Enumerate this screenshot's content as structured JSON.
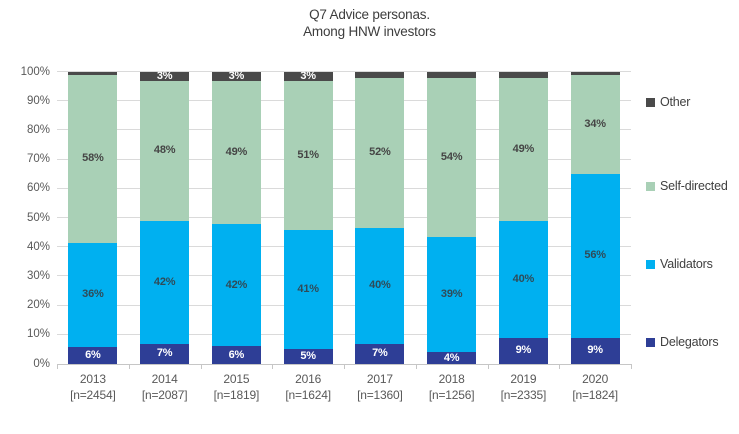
{
  "title": {
    "line1": "Q7 Advice personas.",
    "line2": "Among HNW investors"
  },
  "chart_data": {
    "type": "bar",
    "variant": "stacked-100-percent",
    "title": "Q7 Advice personas. Among HNW investors",
    "categories": [
      "2013",
      "2014",
      "2015",
      "2016",
      "2017",
      "2018",
      "2019",
      "2020"
    ],
    "category_sublabels": [
      "[n=2454]",
      "[n=2087]",
      "[n=1819]",
      "[n=1624]",
      "[n=1360]",
      "[n=1256]",
      "[n=2335]",
      "[n=1824]"
    ],
    "y_ticks": [
      "0%",
      "10%",
      "20%",
      "30%",
      "40%",
      "50%",
      "60%",
      "70%",
      "80%",
      "90%",
      "100%"
    ],
    "ylim": [
      0,
      100
    ],
    "grid": true,
    "legend_position": "right",
    "series": [
      {
        "name": "Delegators",
        "color": "#2e3e96",
        "label_color": "#ffffff",
        "values": [
          6,
          7,
          6,
          5,
          7,
          4,
          9,
          9
        ],
        "labels": [
          "6%",
          "7%",
          "6%",
          "5%",
          "7%",
          "4%",
          "9%",
          "9%"
        ]
      },
      {
        "name": "Validators",
        "color": "#00b0f0",
        "label_color": "#2f4b58",
        "values": [
          36,
          42,
          42,
          41,
          40,
          39,
          40,
          56
        ],
        "labels": [
          "36%",
          "42%",
          "42%",
          "41%",
          "40%",
          "39%",
          "40%",
          "56%"
        ]
      },
      {
        "name": "Self-directed",
        "color": "#a9d0b6",
        "label_color": "#454545",
        "values": [
          58,
          48,
          49,
          51,
          52,
          54,
          49,
          34
        ],
        "labels": [
          "58%",
          "48%",
          "49%",
          "51%",
          "52%",
          "54%",
          "49%",
          "34%"
        ]
      },
      {
        "name": "Other",
        "color": "#4a4a4a",
        "label_color": "#ffffff",
        "values": [
          1,
          3,
          3,
          3,
          2,
          2,
          2,
          1
        ],
        "labels": [
          "",
          "3%",
          "3%",
          "3%",
          "",
          "",
          "",
          ""
        ]
      }
    ],
    "legend": [
      {
        "name": "Other",
        "color": "#4a4a4a"
      },
      {
        "name": "Self-directed",
        "color": "#a9d0b6"
      },
      {
        "name": "Validators",
        "color": "#00b0f0"
      },
      {
        "name": "Delegators",
        "color": "#2e3e96"
      }
    ],
    "colors": {
      "gridline": "#dadada",
      "axis_line": "#c6c6c6",
      "axis_text": "#595959",
      "title_text": "#3d3d3d",
      "legend_text": "#404040"
    }
  }
}
